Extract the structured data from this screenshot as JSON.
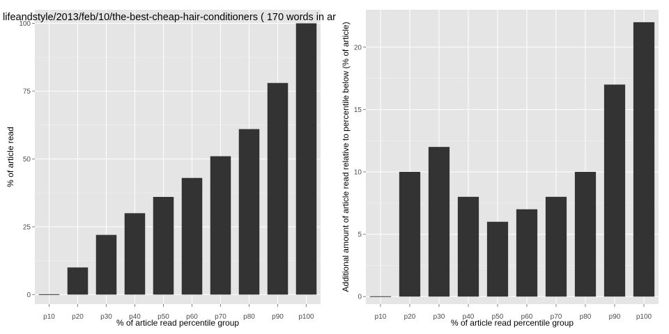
{
  "chart_data": [
    {
      "type": "bar",
      "title": "lifeandstyle/2013/feb/10/the-best-cheap-hair-conditioners ( 170 words in ar",
      "xlabel": "% of article read percentile group",
      "ylabel": "% of article read",
      "categories": [
        "p10",
        "p20",
        "p30",
        "p40",
        "p50",
        "p60",
        "p70",
        "p80",
        "p90",
        "p100"
      ],
      "values": [
        0,
        10,
        22,
        30,
        36,
        43,
        51,
        61,
        78,
        100
      ],
      "ylim": [
        -3.5,
        105
      ],
      "yticks": [
        0,
        25,
        50,
        75,
        100
      ],
      "bar_color": "#333333",
      "panel_background": "#e5e5e5",
      "grid": true
    },
    {
      "type": "bar",
      "title": "",
      "xlabel": "% of article read percentile group",
      "ylabel": "Additional amount of article read relative to percentile below (% of article)",
      "categories": [
        "p10",
        "p20",
        "p30",
        "p40",
        "p50",
        "p60",
        "p70",
        "p80",
        "p90",
        "p100"
      ],
      "values": [
        0,
        10,
        12,
        8,
        6,
        7,
        8,
        10,
        17,
        22
      ],
      "ylim": [
        -0.6,
        23
      ],
      "yticks": [
        0,
        5,
        10,
        15,
        20
      ],
      "bar_color": "#333333",
      "panel_background": "#e5e5e5",
      "grid": true
    }
  ]
}
